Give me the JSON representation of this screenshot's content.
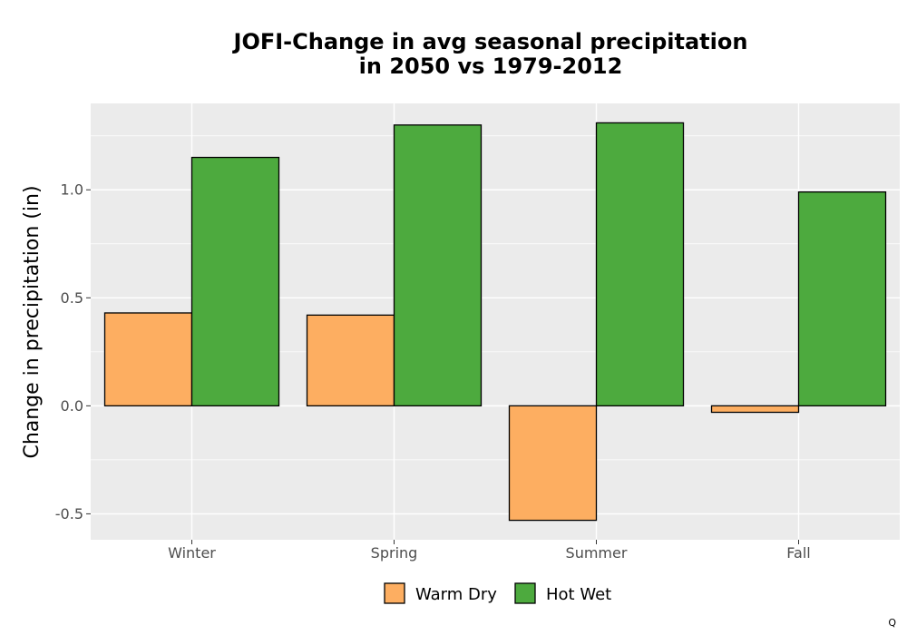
{
  "chart_data": {
    "type": "bar",
    "title_lines": [
      "JOFI-Change in avg seasonal precipitation",
      "in 2050 vs 1979-2012"
    ],
    "xlabel": "",
    "ylabel": "Change in precipitation (in)",
    "categories": [
      "Winter",
      "Spring",
      "Summer",
      "Fall"
    ],
    "series": [
      {
        "name": "Warm Dry",
        "color": "#fdae61",
        "values": [
          0.43,
          0.42,
          -0.53,
          -0.03
        ]
      },
      {
        "name": "Hot Wet",
        "color": "#4daa3e",
        "values": [
          1.15,
          1.3,
          1.31,
          0.99
        ]
      }
    ],
    "ylim": [
      -0.62,
      1.4
    ],
    "yticks": [
      -0.5,
      0.0,
      0.5,
      1.0
    ],
    "ytick_labels": [
      "-0.5",
      "0.0",
      "0.5",
      "1.0"
    ],
    "grid": true,
    "legend_position": "bottom"
  },
  "footnote": "Q"
}
